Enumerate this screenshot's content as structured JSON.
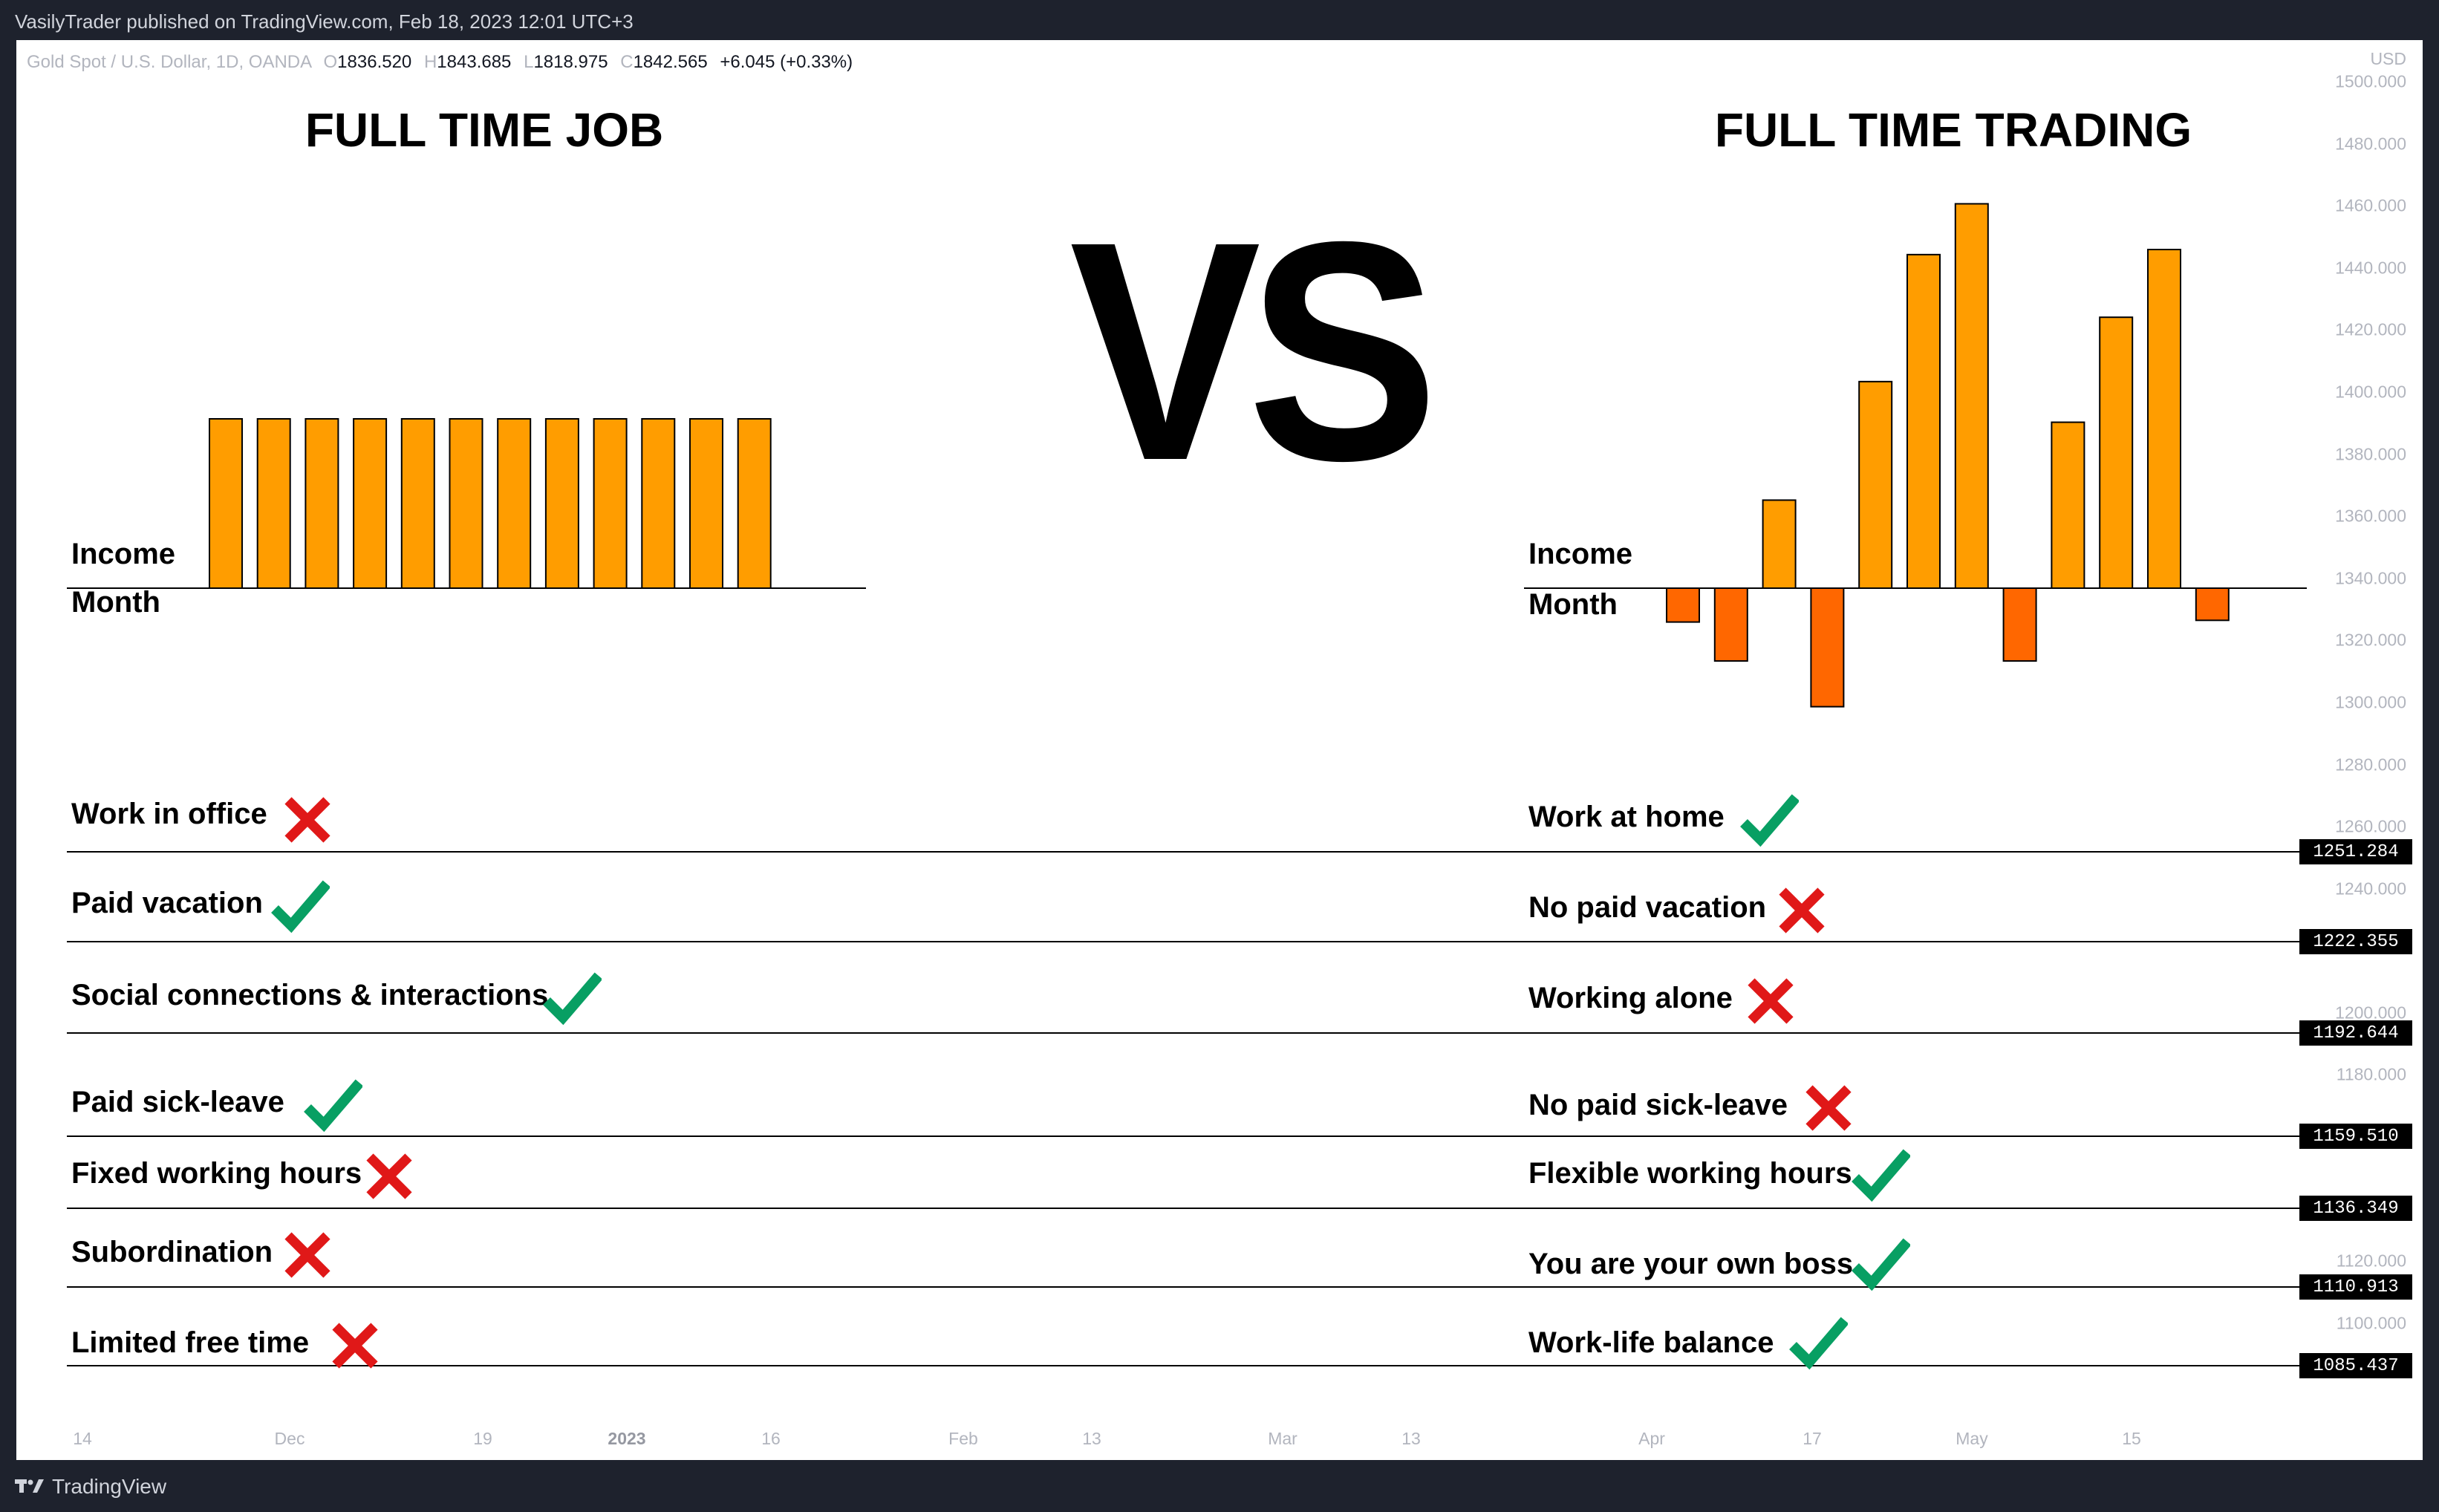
{
  "topbar": {
    "text": "VasilyTrader published on TradingView.com, Feb 18, 2023 12:01 UTC+3"
  },
  "legend": {
    "symbol": "Gold Spot / U.S. Dollar, 1D, OANDA",
    "o_key": "O",
    "o": "1836.520",
    "h_key": "H",
    "h": "1843.685",
    "l_key": "L",
    "l": "1818.975",
    "c_key": "C",
    "c": "1842.565",
    "change": "+6.045 (+0.33%)"
  },
  "price_axis": {
    "currency": "USD",
    "ticks": [
      "1500.000",
      "1480.000",
      "1460.000",
      "1440.000",
      "1420.000",
      "1400.000",
      "1380.000",
      "1360.000",
      "1340.000",
      "1320.000",
      "1300.000",
      "1280.000",
      "1260.000",
      "1240.000",
      "1200.000",
      "1180.000",
      "1120.000",
      "1100.000"
    ],
    "tags": [
      "1251.284",
      "1222.355",
      "1192.644",
      "1159.510",
      "1136.349",
      "1110.913",
      "1085.437"
    ]
  },
  "time_axis": {
    "ticks": [
      "14",
      "Dec",
      "19",
      "2023",
      "16",
      "Feb",
      "13",
      "Mar",
      "13",
      "Apr",
      "17",
      "May",
      "15"
    ]
  },
  "left": {
    "title": "FULL TIME JOB",
    "y_label": "Income",
    "x_label": "Month",
    "rows": [
      {
        "label": "Work in office",
        "mark": "cross"
      },
      {
        "label": "Paid vacation",
        "mark": "check"
      },
      {
        "label": "Social connections & interactions",
        "mark": "check"
      },
      {
        "label": "Paid sick-leave",
        "mark": "check"
      },
      {
        "label": "Fixed working hours",
        "mark": "cross"
      },
      {
        "label": "Subordination",
        "mark": "cross"
      },
      {
        "label": "Limited free time",
        "mark": "cross"
      }
    ]
  },
  "vs": "VS",
  "right": {
    "title": "FULL TIME TRADING",
    "y_label": "Income",
    "x_label": "Month",
    "rows": [
      {
        "label": "Work at home",
        "mark": "check"
      },
      {
        "label": "No paid vacation",
        "mark": "cross"
      },
      {
        "label": "Working alone",
        "mark": "cross"
      },
      {
        "label": "No paid sick-leave",
        "mark": "cross"
      },
      {
        "label": "Flexible working hours",
        "mark": "check"
      },
      {
        "label": "You are your own boss",
        "mark": "check"
      },
      {
        "label": "Work-life balance",
        "mark": "check"
      }
    ]
  },
  "colors": {
    "positive_bar": "#ff9d00",
    "negative_bar": "#ff6700",
    "check": "#089f63",
    "cross": "#e01818"
  },
  "chart_data": [
    {
      "type": "bar",
      "title": "FULL TIME JOB",
      "xlabel": "Month",
      "ylabel": "Income",
      "values": [
        1,
        1,
        1,
        1,
        1,
        1,
        1,
        1,
        1,
        1,
        1,
        1
      ],
      "ylim": [
        -1,
        2.3
      ]
    },
    {
      "type": "bar",
      "title": "FULL TIME TRADING",
      "xlabel": "Month",
      "ylabel": "Income",
      "values": [
        -0.2,
        -0.43,
        0.52,
        -0.7,
        1.22,
        1.97,
        2.27,
        -0.43,
        0.98,
        1.6,
        2.0,
        -0.19
      ],
      "ylim": [
        -1,
        2.3
      ]
    }
  ],
  "footer": {
    "brand": "TradingView"
  }
}
